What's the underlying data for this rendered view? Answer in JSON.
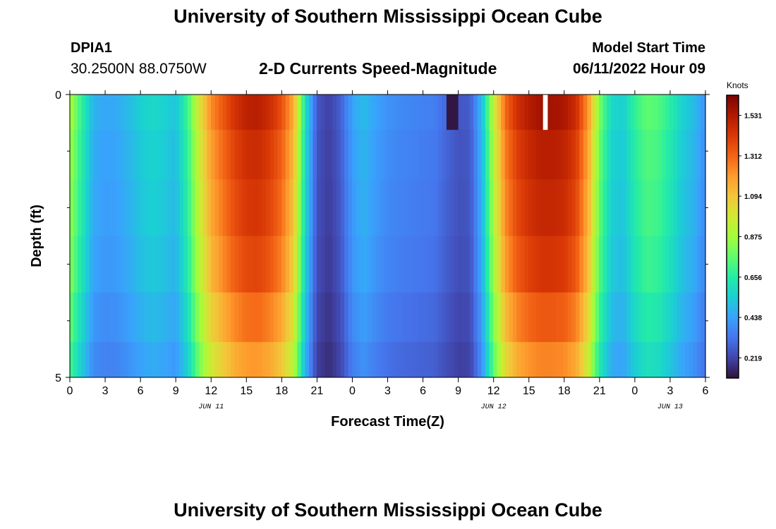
{
  "header": {
    "title": "University of Southern Mississippi Ocean Cube",
    "station_id": "DPIA1",
    "station_coords": "30.2500N  88.0750W",
    "subtitle": "2-D Currents Speed-Magnitude",
    "model_start_label": "Model Start Time",
    "model_start_value": "06/11/2022 Hour 09"
  },
  "footer": {
    "title": "University of Southern Mississippi Ocean Cube"
  },
  "chart_data": {
    "type": "heatmap",
    "title": "2-D Currents Speed-Magnitude",
    "xlabel": "Forecast Time(Z)",
    "ylabel": "Depth (ft)",
    "colorbar_label": "Knots",
    "x_tick_labels": [
      "0",
      "3",
      "6",
      "9",
      "12",
      "15",
      "18",
      "21",
      "0",
      "3",
      "6",
      "9",
      "12",
      "15",
      "18",
      "21",
      "0",
      "3",
      "6"
    ],
    "x_tick_hours": [
      0,
      3,
      6,
      9,
      12,
      15,
      18,
      21,
      24,
      27,
      30,
      33,
      36,
      39,
      42,
      45,
      48,
      51,
      54
    ],
    "date_labels": [
      {
        "text": "JUN 11",
        "hour": 12
      },
      {
        "text": "JUN 12",
        "hour": 36
      },
      {
        "text": "JUN 13",
        "hour": 51
      }
    ],
    "x_range_hours": [
      0,
      54
    ],
    "y_range": [
      0,
      5
    ],
    "y_tick_labels": [
      "0",
      "5"
    ],
    "y_tick_values": [
      0,
      5
    ],
    "y_minor_ticks": [
      1,
      2,
      3,
      4
    ],
    "depth_levels": [
      0.25,
      1.0,
      2.0,
      3.0,
      4.0,
      4.75
    ],
    "colorbar_ticks": [
      1.531,
      1.312,
      1.094,
      0.875,
      0.656,
      0.438,
      0.219
    ],
    "colorbar_range": [
      0.11,
      1.64
    ],
    "colors": {
      "colormap": [
        "#30123b",
        "#4145ab",
        "#4675ed",
        "#39a2fc",
        "#1bcfd4",
        "#24eca6",
        "#61fc6c",
        "#a4fc3b",
        "#d1e834",
        "#f3c63a",
        "#fe9b2d",
        "#f36315",
        "#d93806",
        "#b11901",
        "#7a0403"
      ],
      "missing": "#ffffff"
    },
    "speed_profile": {
      "hours": [
        0,
        1,
        2,
        3,
        4,
        5,
        6,
        7,
        8,
        9,
        10,
        11,
        12,
        13,
        14,
        15,
        16,
        17,
        18,
        19,
        20,
        21,
        22,
        23,
        24,
        25,
        26,
        27,
        28,
        29,
        30,
        31,
        32,
        33,
        34,
        35,
        36,
        37,
        38,
        39,
        40,
        41,
        42,
        43,
        44,
        45,
        46,
        47,
        48,
        49,
        50,
        51,
        52,
        53,
        54
      ],
      "knots": [
        0.9,
        0.68,
        0.48,
        0.45,
        0.46,
        0.5,
        0.55,
        0.58,
        0.56,
        0.52,
        0.7,
        1.0,
        1.23,
        1.34,
        1.44,
        1.5,
        1.51,
        1.46,
        1.36,
        1.16,
        0.6,
        0.26,
        0.21,
        0.28,
        0.44,
        0.5,
        0.44,
        0.4,
        0.38,
        0.37,
        0.36,
        0.35,
        0.3,
        0.26,
        0.27,
        0.5,
        0.95,
        1.3,
        1.45,
        1.52,
        1.56,
        1.56,
        1.54,
        1.46,
        1.22,
        0.8,
        0.58,
        0.55,
        0.68,
        0.76,
        0.74,
        0.66,
        0.56,
        0.5,
        0.4
      ]
    },
    "depth_factors": [
      1.0,
      0.97,
      0.95,
      0.92,
      0.86,
      0.8
    ],
    "anomalies": [
      {
        "hour_start": 32,
        "hour_end": 33,
        "depth_level": 0.25,
        "knots": 0.12
      },
      {
        "hour_start": 40.2,
        "hour_end": 40.6,
        "depth_level": 0.25,
        "missing": true
      }
    ]
  }
}
